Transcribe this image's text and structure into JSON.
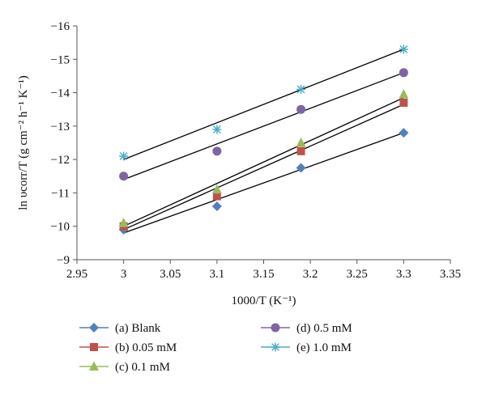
{
  "chart_data": {
    "type": "scatter",
    "xlabel": "1000/T (K⁻¹)",
    "ylabel": "ln υcorr/T (g cm⁻² h⁻¹ K⁻¹)",
    "xlim": [
      2.95,
      3.35
    ],
    "ylim": [
      -16,
      -9
    ],
    "y_axis_inverted": true,
    "x_ticks": [
      "2.95",
      "3",
      "3.05",
      "3.1",
      "3.15",
      "3.2",
      "3.25",
      "3.3",
      "3.35"
    ],
    "y_ticks": [
      "−16",
      "−15",
      "−14",
      "−13",
      "−12",
      "−11",
      "−10",
      "−9"
    ],
    "grid": false,
    "legend_position": "bottom",
    "series": [
      {
        "name": "(a) Blank",
        "marker": "diamond",
        "color": "#4F81BD",
        "x": [
          3.0,
          3.1,
          3.19,
          3.3
        ],
        "y": [
          -9.9,
          -10.6,
          -11.75,
          -12.8
        ],
        "fit": [
          [
            3.0,
            -9.8
          ],
          [
            3.3,
            -12.8
          ]
        ]
      },
      {
        "name": "(b) 0.05 mM",
        "marker": "square",
        "color": "#C0504D",
        "x": [
          3.0,
          3.1,
          3.19,
          3.3
        ],
        "y": [
          -10.0,
          -10.9,
          -12.25,
          -13.7
        ],
        "fit": [
          [
            3.0,
            -9.9
          ],
          [
            3.3,
            -13.65
          ]
        ]
      },
      {
        "name": "(c) 0.1 mM",
        "marker": "triangle",
        "color": "#9BBB59",
        "x": [
          3.0,
          3.1,
          3.19,
          3.3
        ],
        "y": [
          -10.1,
          -11.1,
          -12.5,
          -13.95
        ],
        "fit": [
          [
            3.0,
            -10.0
          ],
          [
            3.3,
            -13.85
          ]
        ]
      },
      {
        "name": "(d) 0.5 mM",
        "marker": "circle",
        "color": "#8064A2",
        "x": [
          3.0,
          3.1,
          3.19,
          3.3
        ],
        "y": [
          -11.5,
          -12.25,
          -13.5,
          -14.6
        ],
        "fit": [
          [
            3.0,
            -11.4
          ],
          [
            3.3,
            -14.6
          ]
        ]
      },
      {
        "name": "(e) 1.0 mM",
        "marker": "star",
        "color": "#4BACC6",
        "x": [
          3.0,
          3.1,
          3.19,
          3.3
        ],
        "y": [
          -12.1,
          -12.9,
          -14.1,
          -15.3
        ],
        "fit": [
          [
            3.0,
            -12.0
          ],
          [
            3.3,
            -15.3
          ]
        ]
      }
    ]
  }
}
